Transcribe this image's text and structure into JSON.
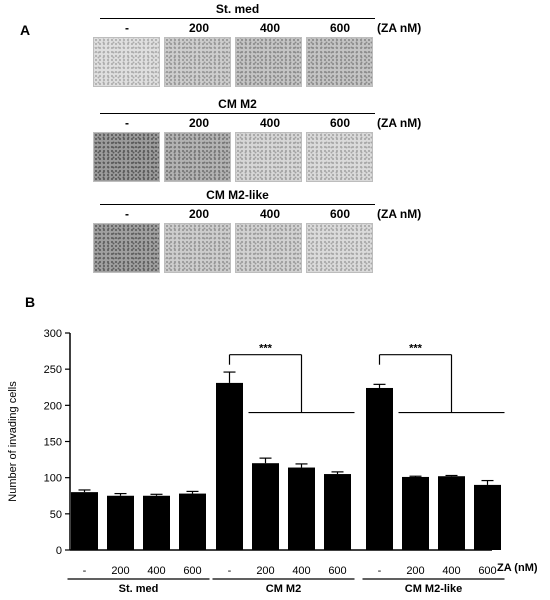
{
  "panel_a": {
    "label": "A",
    "dose_unit": "(ZA nM)",
    "groups": [
      {
        "title": "St. med",
        "doses": [
          "-",
          "200",
          "400",
          "600"
        ],
        "density": [
          0.25,
          0.45,
          0.55,
          0.55
        ]
      },
      {
        "title": "CM M2",
        "doses": [
          "-",
          "200",
          "400",
          "600"
        ],
        "density": [
          1.0,
          0.75,
          0.35,
          0.3
        ]
      },
      {
        "title": "CM M2-like",
        "doses": [
          "-",
          "200",
          "400",
          "600"
        ],
        "density": [
          0.95,
          0.45,
          0.4,
          0.3
        ]
      }
    ]
  },
  "panel_b": {
    "label": "B",
    "xunit": "ZA (nM)",
    "significance": [
      "***",
      "***"
    ]
  },
  "chart_data": {
    "type": "bar",
    "ylabel": "Number of invading cells",
    "ylim": [
      0,
      300
    ],
    "yticks": [
      0,
      50,
      100,
      150,
      200,
      250,
      300
    ],
    "groups": [
      {
        "name": "St. med",
        "categories": [
          "-",
          "200",
          "400",
          "600"
        ],
        "values": [
          80,
          75,
          75,
          78
        ],
        "errors": [
          3,
          3,
          2,
          3
        ]
      },
      {
        "name": "CM M2",
        "categories": [
          "-",
          "200",
          "400",
          "600"
        ],
        "values": [
          231,
          120,
          114,
          105
        ],
        "errors": [
          15,
          7,
          5,
          3
        ]
      },
      {
        "name": "CM M2-like",
        "categories": [
          "-",
          "200",
          "400",
          "600"
        ],
        "values": [
          224,
          101,
          102,
          90
        ],
        "errors": [
          5,
          1,
          1,
          6
        ]
      }
    ]
  }
}
